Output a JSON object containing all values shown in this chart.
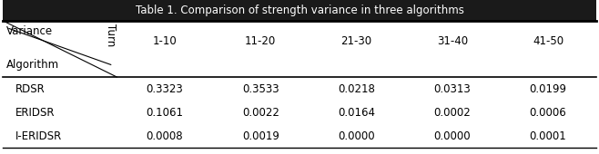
{
  "title": "Table 1. Comparison of strength variance in three algorithms",
  "col_headers": [
    "1-10",
    "11-20",
    "21-30",
    "31-40",
    "41-50"
  ],
  "row_headers": [
    "RDSR",
    "ERIDSR",
    "I-ERIDSR"
  ],
  "values": [
    [
      "0.3323",
      "0.3533",
      "0.0218",
      "0.0313",
      "0.0199"
    ],
    [
      "0.1061",
      "0.0022",
      "0.0164",
      "0.0002",
      "0.0006"
    ],
    [
      "0.0008",
      "0.0019",
      "0.0000",
      "0.0000",
      "0.0001"
    ]
  ],
  "diagonal_label_turn": "Turn",
  "diagonal_label_variance": "Variance",
  "diagonal_label_algorithm": "Algorithm",
  "bg_color": "#ffffff",
  "text_color": "#000000",
  "line_color": "#000000",
  "title_bar_color": "#1a1a1a",
  "font_size": 8.5,
  "title_font_size": 8.5,
  "figsize": [
    6.58,
    1.7
  ],
  "dpi": 100
}
